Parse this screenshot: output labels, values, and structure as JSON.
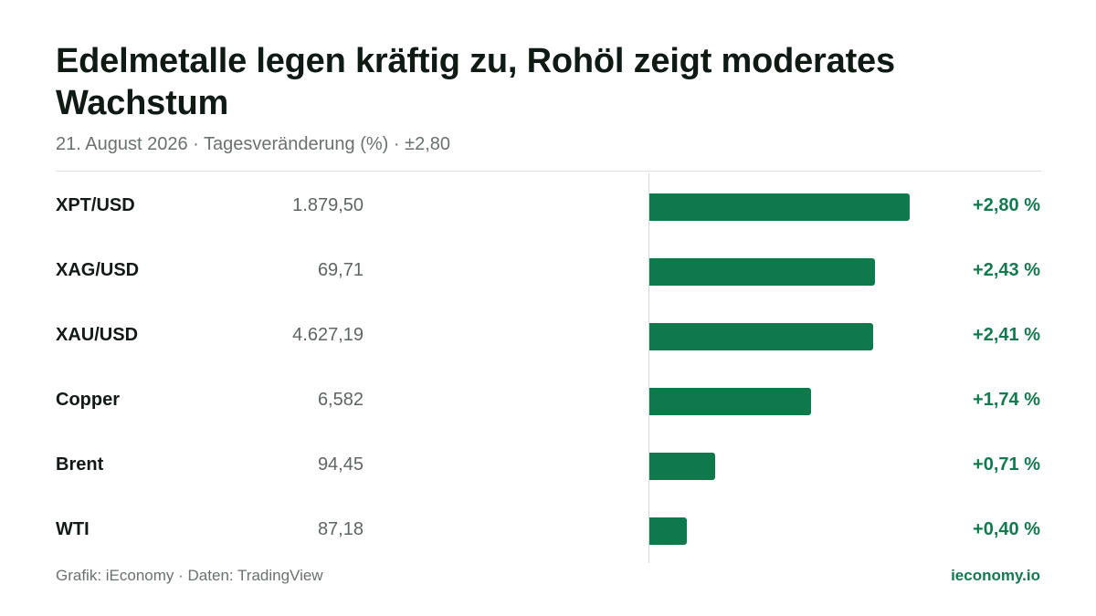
{
  "chart_data": {
    "type": "bar",
    "orientation": "horizontal",
    "title": "Edelmetalle legen kräftig zu, Rohöl zeigt moderates Wachstum",
    "subtitle": "21. August 2026 · Tagesveränderung (%) · ±2,80",
    "xlim": [
      0,
      2.8
    ],
    "grid": false,
    "legend": "none",
    "rows": [
      {
        "label": "XPT/USD",
        "price": "1.879,50",
        "value": 2.8,
        "value_label": "+2,80 %"
      },
      {
        "label": "XAG/USD",
        "price": "69,71",
        "value": 2.43,
        "value_label": "+2,43 %"
      },
      {
        "label": "XAU/USD",
        "price": "4.627,19",
        "value": 2.41,
        "value_label": "+2,41 %"
      },
      {
        "label": "Copper",
        "price": "6,582",
        "value": 1.74,
        "value_label": "+1,74 %"
      },
      {
        "label": "Brent",
        "price": "94,45",
        "value": 0.71,
        "value_label": "+0,71 %"
      },
      {
        "label": "WTI",
        "price": "87,18",
        "value": 0.4,
        "value_label": "+0,40 %"
      }
    ]
  },
  "footer": {
    "source": "Grafik: iEconomy · Daten: TradingView",
    "brand": "ieconomy.io"
  },
  "colors": {
    "bar": "#0e7a4c",
    "positive_text": "#137a4f"
  }
}
